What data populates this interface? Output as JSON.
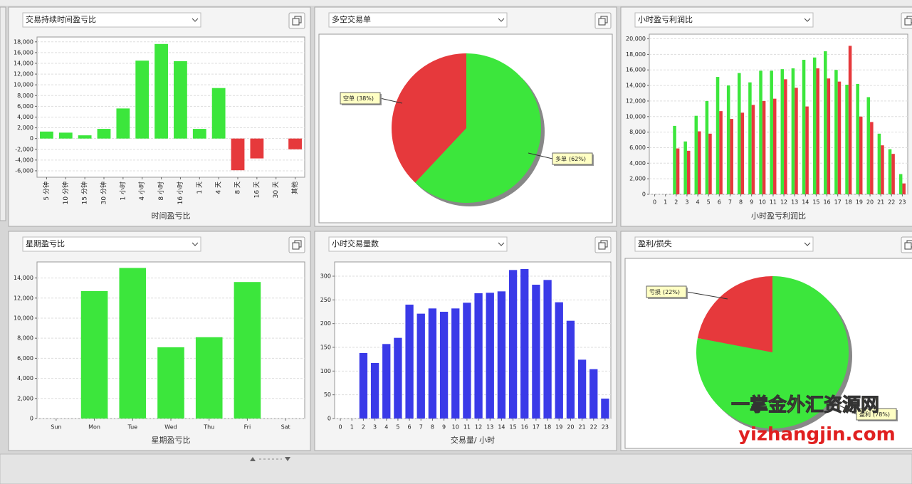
{
  "chart_data": [
    {
      "type": "bar",
      "title": "交易持续时间盈亏比",
      "x_label": "时间盈亏比",
      "categories": [
        "5 分钟",
        "10 分钟",
        "15 分钟",
        "30 分钟",
        "1 小时",
        "4 小时",
        "8 小时",
        "16 小时",
        "1 天",
        "4 天",
        "8 天",
        "16 天",
        "30 天",
        "其他"
      ],
      "values": [
        1300,
        1100,
        600,
        1800,
        5600,
        14500,
        17600,
        14400,
        1800,
        9400,
        -5900,
        -3700,
        0,
        -2000
      ],
      "positive_color": "#3ce63c",
      "negative_color": "#e6393c",
      "ylim": [
        -7200,
        18900
      ],
      "yticks": [
        {
          "value": -6000,
          "label": "-6,000"
        },
        {
          "value": -4000,
          "label": "-4,000"
        },
        {
          "value": -2000,
          "label": "-2,000"
        },
        0,
        {
          "value": 2000,
          "label": "2,000"
        },
        {
          "value": 4000,
          "label": "4,000"
        },
        {
          "value": 6000,
          "label": "6,000"
        },
        {
          "value": 8000,
          "label": "8,000"
        },
        {
          "value": 10000,
          "label": "10,000"
        },
        {
          "value": 12000,
          "label": "12,000"
        },
        {
          "value": 14000,
          "label": "14,000"
        },
        {
          "value": 16000,
          "label": "16,000"
        },
        {
          "value": 18000,
          "label": "18,000"
        }
      ],
      "grid": true,
      "x_label_rotation": -90
    },
    {
      "type": "pie",
      "title": "多空交易单",
      "categories": [
        "空单",
        "多单"
      ],
      "values": [
        38,
        62
      ],
      "value_labels": [
        "(38%)",
        "(62%)"
      ],
      "colors": [
        "#e6393c",
        "#3ce63c"
      ]
    },
    {
      "type": "grouped_bar",
      "title": "小时盈亏利润比",
      "x_label": "小时盈亏利润比",
      "categories": [
        "0",
        "1",
        "2",
        "3",
        "4",
        "5",
        "6",
        "7",
        "8",
        "9",
        "10",
        "11",
        "12",
        "13",
        "14",
        "15",
        "16",
        "17",
        "18",
        "19",
        "20",
        "21",
        "22",
        "23"
      ],
      "series": [
        {
          "color": "#3ce63c",
          "values": [
            0,
            0,
            8800,
            6800,
            10100,
            12000,
            15100,
            14000,
            15600,
            14400,
            15900,
            15900,
            16100,
            16200,
            17300,
            17600,
            18400,
            16000,
            14100,
            14200,
            12500,
            7800,
            5800,
            2600
          ]
        },
        {
          "color": "#e6393c",
          "values": [
            0,
            0,
            5900,
            5600,
            8100,
            7800,
            10700,
            9700,
            10500,
            11500,
            12000,
            12300,
            14800,
            13700,
            11300,
            16200,
            14900,
            14500,
            19100,
            10000,
            9300,
            6300,
            5200,
            1400
          ]
        }
      ],
      "ylim": [
        0,
        20600
      ],
      "yticks": [
        0,
        {
          "value": 2000,
          "label": "2,000"
        },
        {
          "value": 4000,
          "label": "4,000"
        },
        {
          "value": 6000,
          "label": "6,000"
        },
        {
          "value": 8000,
          "label": "8,000"
        },
        {
          "value": 10000,
          "label": "10,000"
        },
        {
          "value": 12000,
          "label": "12,000"
        },
        {
          "value": 14000,
          "label": "14,000"
        },
        {
          "value": 16000,
          "label": "16,000"
        },
        {
          "value": 18000,
          "label": "18,000"
        },
        {
          "value": 20000,
          "label": "20,000"
        }
      ],
      "grid": true
    },
    {
      "type": "bar",
      "title": "星期盈亏比",
      "x_label": "星期盈亏比",
      "categories": [
        "Sun",
        "Mon",
        "Tue",
        "Wed",
        "Thu",
        "Fri",
        "Sat"
      ],
      "values": [
        0,
        12700,
        15000,
        7100,
        8100,
        13600,
        0
      ],
      "positive_color": "#3ce63c",
      "negative_color": "#e6393c",
      "ylim": [
        0,
        15600
      ],
      "yticks": [
        0,
        {
          "value": 2000,
          "label": "2,000"
        },
        {
          "value": 4000,
          "label": "4,000"
        },
        {
          "value": 6000,
          "label": "6,000"
        },
        {
          "value": 8000,
          "label": "8,000"
        },
        {
          "value": 10000,
          "label": "10,000"
        },
        {
          "value": 12000,
          "label": "12,000"
        },
        {
          "value": 14000,
          "label": "14,000"
        }
      ],
      "grid": true
    },
    {
      "type": "bar",
      "title": "小时交易量数",
      "x_label": "交易量/ 小时",
      "categories": [
        "0",
        "1",
        "2",
        "3",
        "4",
        "5",
        "6",
        "7",
        "8",
        "9",
        "10",
        "11",
        "12",
        "13",
        "14",
        "15",
        "16",
        "17",
        "18",
        "19",
        "20",
        "21",
        "22",
        "23"
      ],
      "values": [
        0,
        0,
        138,
        117,
        157,
        170,
        240,
        221,
        232,
        225,
        232,
        244,
        264,
        265,
        268,
        313,
        315,
        282,
        292,
        245,
        206,
        124,
        104,
        42
      ],
      "positive_color": "#3a3ae8",
      "negative_color": "#3a3ae8",
      "ylim": [
        0,
        330
      ],
      "yticks": [
        0,
        50,
        100,
        150,
        200,
        250,
        300
      ],
      "grid": true
    },
    {
      "type": "pie",
      "title": "盈利/损失",
      "categories": [
        "亏损",
        "盈利"
      ],
      "values": [
        22,
        78
      ],
      "value_labels": [
        "(22%)",
        "(78%)"
      ],
      "colors": [
        "#e6393c",
        "#3ce63c"
      ]
    }
  ],
  "watermark": {
    "line1": "一掌金外汇资源网",
    "line2": "yizhangjin.com"
  }
}
